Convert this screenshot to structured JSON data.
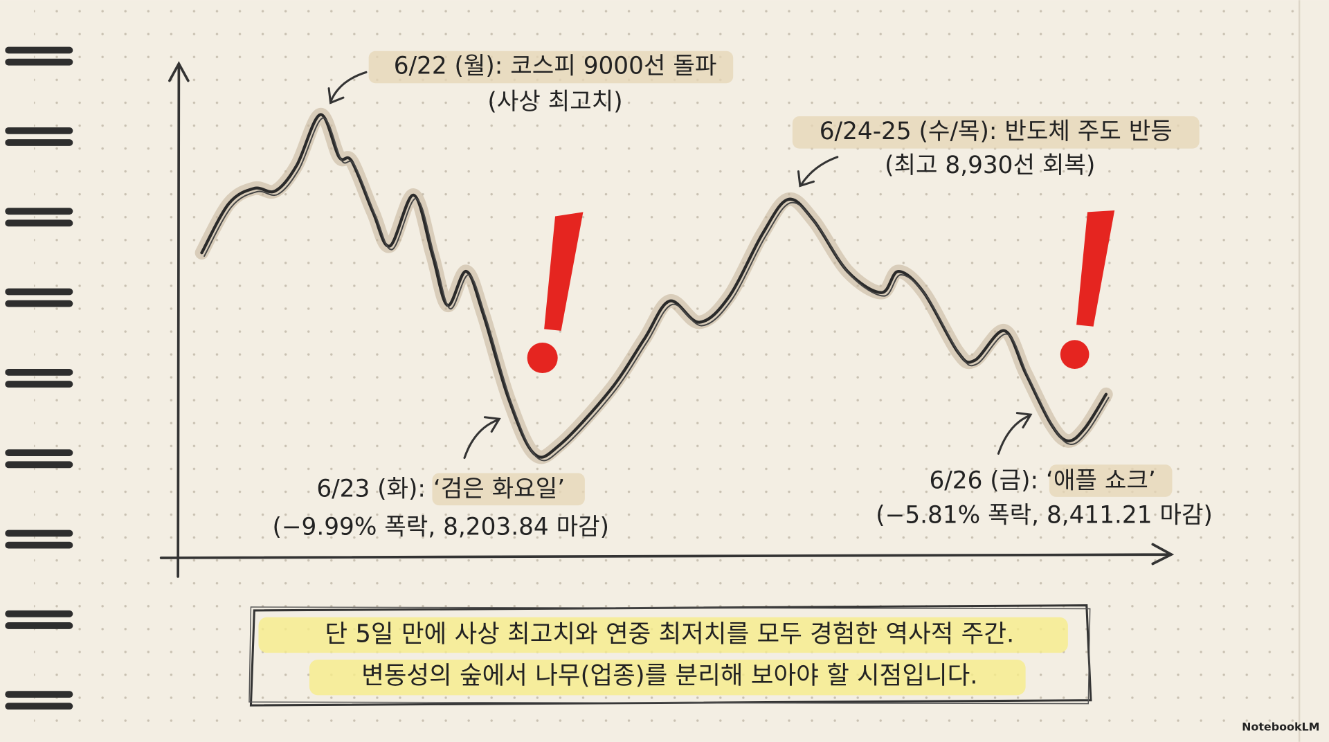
{
  "annotations": [
    {
      "title": "6/22 (월): 코스피 9000선 돌파",
      "detail": "(사상 최고치)"
    },
    {
      "title": "6/24-25 (수/목): 반도체 주도 반등",
      "detail": "(최고 8,930선 회복)"
    },
    {
      "title": "6/23 (화): ‘검은 화요일’",
      "detail": "(−9.99% 폭락, 8,203.84 마감)"
    },
    {
      "title": "6/26 (금): ‘애플 쇼크’",
      "detail": "(−5.81% 폭락, 8,411.21 마감)"
    }
  ],
  "caption": {
    "lines": [
      "단 5일 만에 사상 최고치와 연중 최저치를 모두 경험한 역사적 주간.",
      "변동성의 숲에서 나무(업종)를 분리해 보아야 할 시점입니다."
    ]
  },
  "watermark": "NotebookLM"
}
